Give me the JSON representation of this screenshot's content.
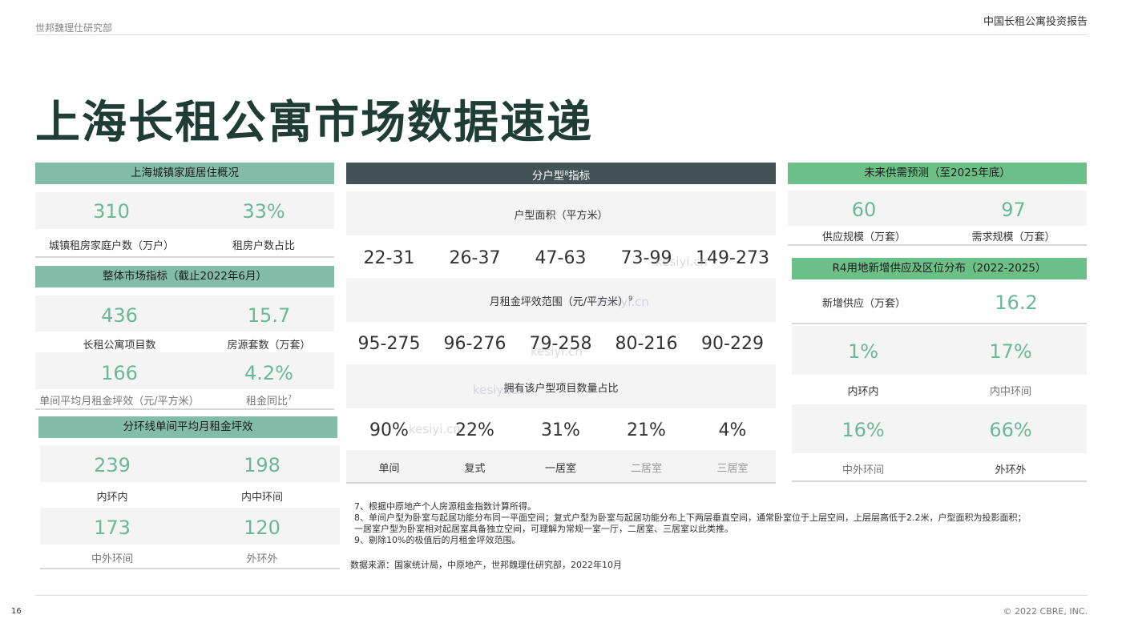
{
  "header": {
    "left": "世邦魏理仕研究部",
    "right": "中国长租公寓投资报告"
  },
  "title": "上海长租公寓市场数据速递",
  "left": {
    "household": {
      "heading": "上海城镇家庭居住概况",
      "items": [
        {
          "value": "310",
          "label": "城镇租房家庭户数（万户）"
        },
        {
          "value": "33%",
          "label": "租房户数占比"
        }
      ]
    },
    "market": {
      "heading": "整体市场指标（截止2022年6月）",
      "items": [
        {
          "value": "436",
          "label": "长租公寓项目数"
        },
        {
          "value": "15.7",
          "label": "房源套数（万套）"
        },
        {
          "value": "166",
          "label": "单间平均月租金坪效（元/平方米）"
        },
        {
          "value": "4.2%",
          "label": "租金同比",
          "sup": "7"
        }
      ]
    },
    "ring": {
      "heading": "分环线单间平均月租金坪效",
      "items": [
        {
          "value": "239",
          "label": "内环内"
        },
        {
          "value": "198",
          "label": "内中环间"
        },
        {
          "value": "173",
          "label": "中外环间"
        },
        {
          "value": "120",
          "label": "外环外"
        }
      ]
    }
  },
  "middle": {
    "heading": "分户型",
    "heading_sup": "8",
    "heading_suffix": "指标",
    "area_label": "户型面积（平方米）",
    "areas": [
      "22-31",
      "26-37",
      "47-63",
      "73-99",
      "149-273"
    ],
    "rent_label": "月租金坪效范围（元/平方米）",
    "rent_sup": "9",
    "rents": [
      "95-275",
      "96-276",
      "79-258",
      "80-216",
      "90-229"
    ],
    "share_label": "拥有该户型项目数量占比",
    "shares": [
      "90%",
      "22%",
      "31%",
      "21%",
      "4%"
    ],
    "types": [
      "单间",
      "复式",
      "一居室",
      "二居室",
      "三居室"
    ]
  },
  "right": {
    "forecast": {
      "heading": "未来供需预测（至2025年底）",
      "items": [
        {
          "value": "60",
          "label": "供应规模（万套）"
        },
        {
          "value": "97",
          "label": "需求规模（万套）"
        }
      ]
    },
    "r4": {
      "heading": "R4用地新增供应及区位分布（2022-2025）",
      "new_supply_label": "新增供应（万套）",
      "new_supply_value": "16.2",
      "items": [
        {
          "value": "1%",
          "label": "内环内"
        },
        {
          "value": "17%",
          "label": "内中环间"
        },
        {
          "value": "16%",
          "label": "中外环间"
        },
        {
          "value": "66%",
          "label": "外环外"
        }
      ]
    }
  },
  "notes": [
    "7、根据中原地产个人房源租金指数计算所得。",
    "8、单间户型为卧室与起居功能分布同一平面空间；复式户型为卧室与起居功能分布上下两层垂直空间，通常卧室位于上层空间，上层层高低于2.2米，户型面积为投影面积；",
    "一居室户型为卧室相对起居室具备独立空间，可理解为常规一室一厅，二居室、三居室以此类推。",
    "9、剔除10%的极值后的月租金坪效范围。"
  ],
  "source": "数据来源：国家统计局，中原地产，世邦魏理仕研究部，2022年10月",
  "footer": {
    "page": "16",
    "copyright": "© 2022 CBRE, INC."
  },
  "watermark": "kesiyi.cn",
  "colors": {
    "title": "#1f3d35",
    "teal": "#83bca9",
    "dark": "#435254",
    "green": "#6cbf86",
    "value": "#6bb896"
  }
}
